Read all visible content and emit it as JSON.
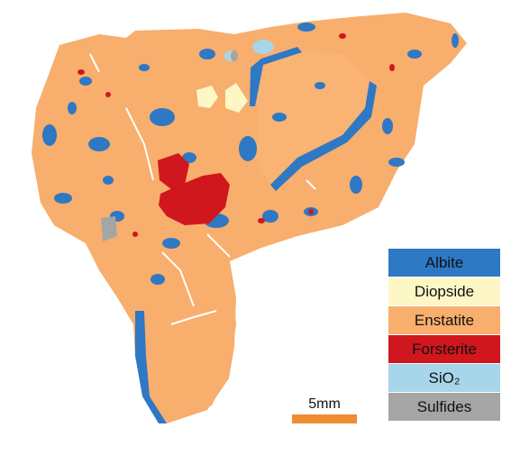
{
  "legend": {
    "items": [
      {
        "label": "Albite",
        "color": "#2e78c4"
      },
      {
        "label": "Diopside",
        "color": "#fdf7c6"
      },
      {
        "label": "Enstatite",
        "color": "#f8ae6c"
      },
      {
        "label": "Forsterite",
        "color": "#d0171d"
      },
      {
        "label": "SiO₂",
        "color": "#a7d5ea"
      },
      {
        "label": "Sulfides",
        "color": "#a5a5a5"
      }
    ]
  },
  "scale_bar": {
    "label": "5mm",
    "color": "#ef8c32"
  },
  "colors": {
    "background": "#ffffff",
    "albite": "#2e78c4",
    "diopside": "#fdf7c6",
    "enstatite": "#f8ae6c",
    "forsterite": "#d0171d",
    "sio2": "#a7d5ea",
    "sulfides": "#a5a5a5"
  }
}
